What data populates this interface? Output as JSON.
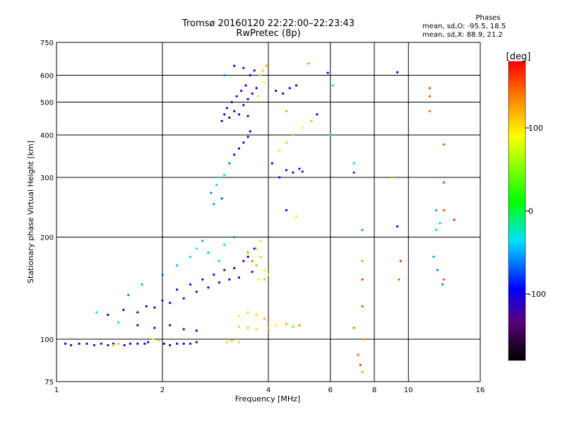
{
  "header": {
    "title": "Tromsø 20160120 22:22:00–22:23:43",
    "subtitle": "RwPretec (8p)"
  },
  "stats": {
    "heading": "Phases",
    "line_o": "mean, sd,O:  -95.5, 18.5",
    "line_x": "mean, sd,X:  88.9, 21.2"
  },
  "chart_data": {
    "type": "scatter",
    "xlabel": "Frequency [MHz]",
    "ylabel": "Stationary phase Virtual Height [km]",
    "xscale": "log",
    "yscale": "log",
    "xlim": [
      1,
      16
    ],
    "ylim": [
      75,
      750
    ],
    "xticks": [
      1,
      2,
      4,
      6,
      8,
      10,
      16
    ],
    "yticks": [
      75,
      100,
      200,
      300,
      400,
      500,
      600,
      750
    ],
    "x_gridlines": [
      2,
      4,
      6,
      8,
      10
    ],
    "y_gridlines": [
      100,
      200,
      300,
      400,
      500,
      600
    ],
    "grid": true,
    "colorbar": {
      "label": "[deg]",
      "range": [
        -180,
        180
      ],
      "ticks": [
        100,
        0,
        -100
      ]
    },
    "points": [
      [
        1.06,
        97,
        -105
      ],
      [
        1.1,
        96,
        -108
      ],
      [
        1.16,
        97,
        -102
      ],
      [
        1.22,
        97,
        -110
      ],
      [
        1.28,
        96,
        -100
      ],
      [
        1.34,
        97,
        -106
      ],
      [
        1.4,
        96,
        -104
      ],
      [
        1.45,
        97,
        -95
      ],
      [
        1.5,
        97,
        -110
      ],
      [
        1.56,
        96,
        -98
      ],
      [
        1.62,
        97,
        -108
      ],
      [
        1.7,
        97,
        -102
      ],
      [
        1.78,
        97,
        -115
      ],
      [
        1.82,
        98,
        -100
      ],
      [
        2.02,
        97,
        -105
      ],
      [
        2.1,
        96,
        -108
      ],
      [
        2.2,
        97,
        -102
      ],
      [
        2.3,
        97,
        -100
      ],
      [
        2.4,
        97,
        -110
      ],
      [
        2.5,
        98,
        -98
      ],
      [
        1.45,
        96,
        110
      ],
      [
        1.5,
        97,
        105
      ],
      [
        1.88,
        100,
        95
      ],
      [
        1.95,
        99,
        100
      ],
      [
        3.05,
        98,
        105
      ],
      [
        3.15,
        99,
        110
      ],
      [
        3.3,
        98,
        100
      ],
      [
        1.4,
        118,
        -100
      ],
      [
        1.55,
        122,
        -95
      ],
      [
        1.7,
        120,
        -110
      ],
      [
        1.8,
        125,
        -108
      ],
      [
        1.9,
        124,
        -100
      ],
      [
        2.0,
        130,
        -105
      ],
      [
        2.1,
        128,
        -95
      ],
      [
        2.2,
        140,
        -100
      ],
      [
        2.3,
        132,
        -112
      ],
      [
        2.4,
        145,
        -100
      ],
      [
        2.5,
        138,
        -95
      ],
      [
        2.6,
        150,
        -110
      ],
      [
        2.7,
        142,
        -100
      ],
      [
        2.8,
        155,
        -105
      ],
      [
        2.9,
        147,
        -95
      ],
      [
        3.0,
        160,
        -108
      ],
      [
        3.1,
        150,
        -100
      ],
      [
        3.2,
        162,
        -105
      ],
      [
        3.3,
        152,
        -95
      ],
      [
        3.4,
        170,
        -110
      ],
      [
        3.5,
        175,
        -100
      ],
      [
        3.6,
        158,
        -105
      ],
      [
        3.65,
        185,
        -100
      ],
      [
        1.6,
        135,
        -60
      ],
      [
        1.75,
        145,
        -50
      ],
      [
        2.0,
        155,
        -70
      ],
      [
        2.2,
        165,
        -40
      ],
      [
        2.4,
        175,
        -30
      ],
      [
        2.5,
        185,
        -20
      ],
      [
        2.6,
        195,
        -55
      ],
      [
        2.7,
        180,
        -45
      ],
      [
        2.9,
        170,
        -35
      ],
      [
        3.0,
        190,
        -25
      ],
      [
        3.2,
        200,
        -60
      ],
      [
        1.3,
        120,
        -20
      ],
      [
        1.5,
        112,
        -30
      ],
      [
        1.7,
        110,
        -95
      ],
      [
        1.9,
        108,
        -100
      ],
      [
        2.1,
        110,
        -105
      ],
      [
        2.3,
        107,
        -110
      ],
      [
        2.5,
        106,
        -100
      ],
      [
        3.5,
        180,
        130
      ],
      [
        3.6,
        170,
        140
      ],
      [
        3.7,
        165,
        120
      ],
      [
        3.8,
        175,
        110
      ],
      [
        3.9,
        160,
        100
      ],
      [
        3.75,
        150,
        90
      ],
      [
        3.9,
        150,
        115
      ],
      [
        4.0,
        155,
        85
      ],
      [
        3.8,
        195,
        70
      ],
      [
        3.7,
        185,
        60
      ],
      [
        3.5,
        120,
        110
      ],
      [
        3.7,
        118,
        100
      ],
      [
        3.9,
        115,
        120
      ],
      [
        3.3,
        117,
        80
      ],
      [
        3.3,
        109,
        60
      ],
      [
        3.5,
        108,
        50
      ],
      [
        3.7,
        107,
        100
      ],
      [
        4.0,
        108,
        110
      ],
      [
        4.2,
        110,
        90
      ],
      [
        4.5,
        111,
        120
      ],
      [
        4.7,
        109,
        40
      ],
      [
        4.9,
        110,
        130
      ],
      [
        2.75,
        270,
        -60
      ],
      [
        2.85,
        285,
        -40
      ],
      [
        2.9,
        300,
        -30
      ],
      [
        2.95,
        260,
        -70
      ],
      [
        2.8,
        250,
        -50
      ],
      [
        3.0,
        305,
        -20
      ],
      [
        3.1,
        330,
        -60
      ],
      [
        3.2,
        350,
        -90
      ],
      [
        3.3,
        365,
        -100
      ],
      [
        3.4,
        380,
        -95
      ],
      [
        3.5,
        395,
        -105
      ],
      [
        3.55,
        410,
        -100
      ],
      [
        2.95,
        440,
        -105
      ],
      [
        3.0,
        460,
        -100
      ],
      [
        3.05,
        480,
        -110
      ],
      [
        3.1,
        450,
        -95
      ],
      [
        3.15,
        500,
        -108
      ],
      [
        3.2,
        470,
        -100
      ],
      [
        3.25,
        520,
        -105
      ],
      [
        3.3,
        460,
        -95
      ],
      [
        3.35,
        540,
        -110
      ],
      [
        3.4,
        490,
        -100
      ],
      [
        3.45,
        560,
        -105
      ],
      [
        3.5,
        510,
        -95
      ],
      [
        3.55,
        600,
        -100
      ],
      [
        3.6,
        530,
        -110
      ],
      [
        3.65,
        620,
        -105
      ],
      [
        3.7,
        550,
        -95
      ],
      [
        3.2,
        640,
        -100
      ],
      [
        3.4,
        630,
        -105
      ],
      [
        3.0,
        600,
        -60
      ],
      [
        3.5,
        455,
        -100
      ],
      [
        3.8,
        600,
        105
      ],
      [
        3.85,
        620,
        110
      ],
      [
        3.9,
        570,
        95
      ],
      [
        3.95,
        640,
        120
      ],
      [
        3.75,
        520,
        100
      ],
      [
        4.1,
        330,
        -100
      ],
      [
        4.3,
        300,
        -105
      ],
      [
        4.5,
        315,
        -95
      ],
      [
        4.7,
        310,
        -100
      ],
      [
        4.9,
        318,
        -110
      ],
      [
        5.0,
        312,
        -100
      ],
      [
        4.3,
        360,
        100
      ],
      [
        4.5,
        380,
        110
      ],
      [
        4.7,
        400,
        120
      ],
      [
        5.0,
        420,
        95
      ],
      [
        5.3,
        440,
        115
      ],
      [
        4.8,
        230,
        100
      ],
      [
        4.5,
        240,
        -100
      ],
      [
        4.2,
        540,
        -100
      ],
      [
        4.4,
        530,
        -100
      ],
      [
        4.6,
        550,
        -100
      ],
      [
        4.8,
        560,
        -100
      ],
      [
        5.5,
        460,
        -100
      ],
      [
        5.9,
        610,
        -95
      ],
      [
        4.5,
        470,
        120
      ],
      [
        5.2,
        650,
        130
      ],
      [
        6.0,
        400,
        -10
      ],
      [
        6.1,
        560,
        -10
      ],
      [
        7.0,
        330,
        -20
      ],
      [
        7.0,
        310,
        -80
      ],
      [
        7.4,
        210,
        -50
      ],
      [
        7.4,
        170,
        120
      ],
      [
        7.2,
        90,
        140
      ],
      [
        7.3,
        84,
        155
      ],
      [
        7.4,
        80,
        120
      ],
      [
        7.5,
        100,
        130
      ],
      [
        7.0,
        108,
        140
      ],
      [
        7.4,
        150,
        160
      ],
      [
        7.4,
        125,
        150
      ],
      [
        9.0,
        300,
        120
      ],
      [
        9.3,
        215,
        -100
      ],
      [
        9.5,
        170,
        160
      ],
      [
        9.4,
        150,
        150
      ],
      [
        9.3,
        612,
        -100
      ],
      [
        11.5,
        550,
        150
      ],
      [
        11.5,
        520,
        150
      ],
      [
        11.5,
        470,
        140
      ],
      [
        12.0,
        240,
        -50
      ],
      [
        12.3,
        220,
        -40
      ],
      [
        12.0,
        210,
        -30
      ],
      [
        11.8,
        175,
        -50
      ],
      [
        12.1,
        160,
        -60
      ],
      [
        12.5,
        145,
        -60
      ],
      [
        12.6,
        375,
        150
      ],
      [
        12.6,
        290,
        150
      ],
      [
        12.6,
        240,
        150
      ],
      [
        12.6,
        150,
        150
      ],
      [
        13.5,
        225,
        170
      ]
    ]
  }
}
